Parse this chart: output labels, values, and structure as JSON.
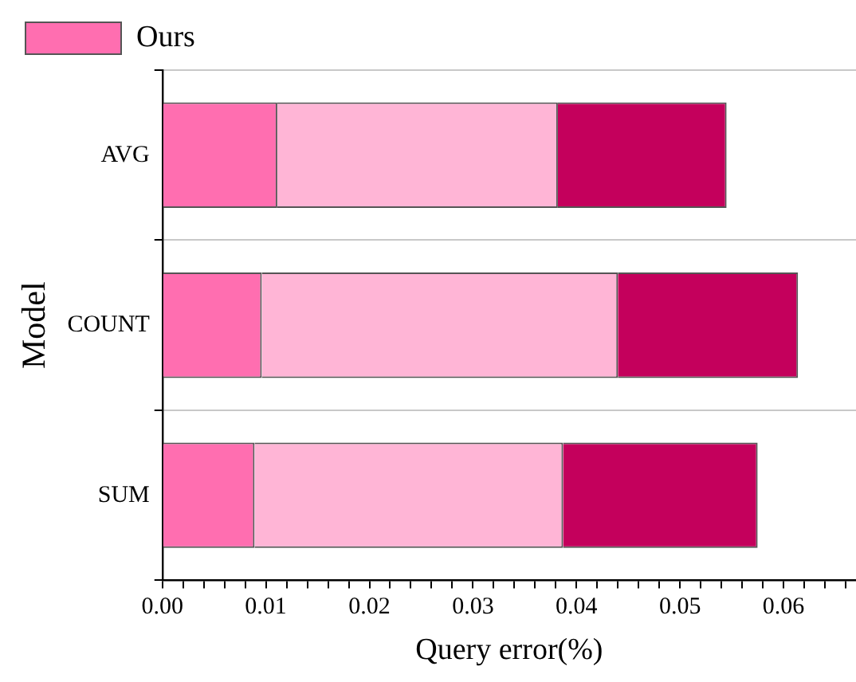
{
  "chart_data": {
    "type": "bar",
    "orientation": "horizontal",
    "stacked": true,
    "xlabel": "Query error(%)",
    "ylabel": "Model",
    "categories": [
      "AVG",
      "COUNT",
      "SUM"
    ],
    "series": [
      {
        "name": "Ours",
        "color": "#ff6eb0",
        "values": [
          0.0111,
          0.0096,
          0.0089
        ]
      },
      {
        "color": "#ffb5d6",
        "values": [
          0.0271,
          0.0344,
          0.0298
        ]
      },
      {
        "color": "#c4005c",
        "values": [
          0.0163,
          0.0174,
          0.0188
        ]
      }
    ],
    "xlim": [
      0,
      0.067
    ],
    "xticks": [
      {
        "value": 0,
        "label": "0.00"
      },
      {
        "value": 0.002,
        "label": null
      },
      {
        "value": 0.004,
        "label": null
      },
      {
        "value": 0.006,
        "label": null
      },
      {
        "value": 0.008,
        "label": null
      },
      {
        "value": 0.01,
        "label": "0.01"
      },
      {
        "value": 0.012,
        "label": null
      },
      {
        "value": 0.014,
        "label": null
      },
      {
        "value": 0.016,
        "label": null
      },
      {
        "value": 0.018,
        "label": null
      },
      {
        "value": 0.02,
        "label": "0.02"
      },
      {
        "value": 0.022,
        "label": null
      },
      {
        "value": 0.024,
        "label": null
      },
      {
        "value": 0.026,
        "label": null
      },
      {
        "value": 0.028,
        "label": null
      },
      {
        "value": 0.03,
        "label": "0.03"
      },
      {
        "value": 0.032,
        "label": null
      },
      {
        "value": 0.034,
        "label": null
      },
      {
        "value": 0.036,
        "label": null
      },
      {
        "value": 0.038,
        "label": null
      },
      {
        "value": 0.04,
        "label": "0.04"
      },
      {
        "value": 0.042,
        "label": null
      },
      {
        "value": 0.044,
        "label": null
      },
      {
        "value": 0.046,
        "label": null
      },
      {
        "value": 0.048,
        "label": null
      },
      {
        "value": 0.05,
        "label": "0.05"
      },
      {
        "value": 0.052,
        "label": null
      },
      {
        "value": 0.054,
        "label": null
      },
      {
        "value": 0.056,
        "label": null
      },
      {
        "value": 0.058,
        "label": null
      },
      {
        "value": 0.06,
        "label": "0.06"
      },
      {
        "value": 0.062,
        "label": null
      },
      {
        "value": 0.064,
        "label": null
      },
      {
        "value": 0.066,
        "label": null
      }
    ],
    "grid": "y",
    "legend": "top"
  }
}
